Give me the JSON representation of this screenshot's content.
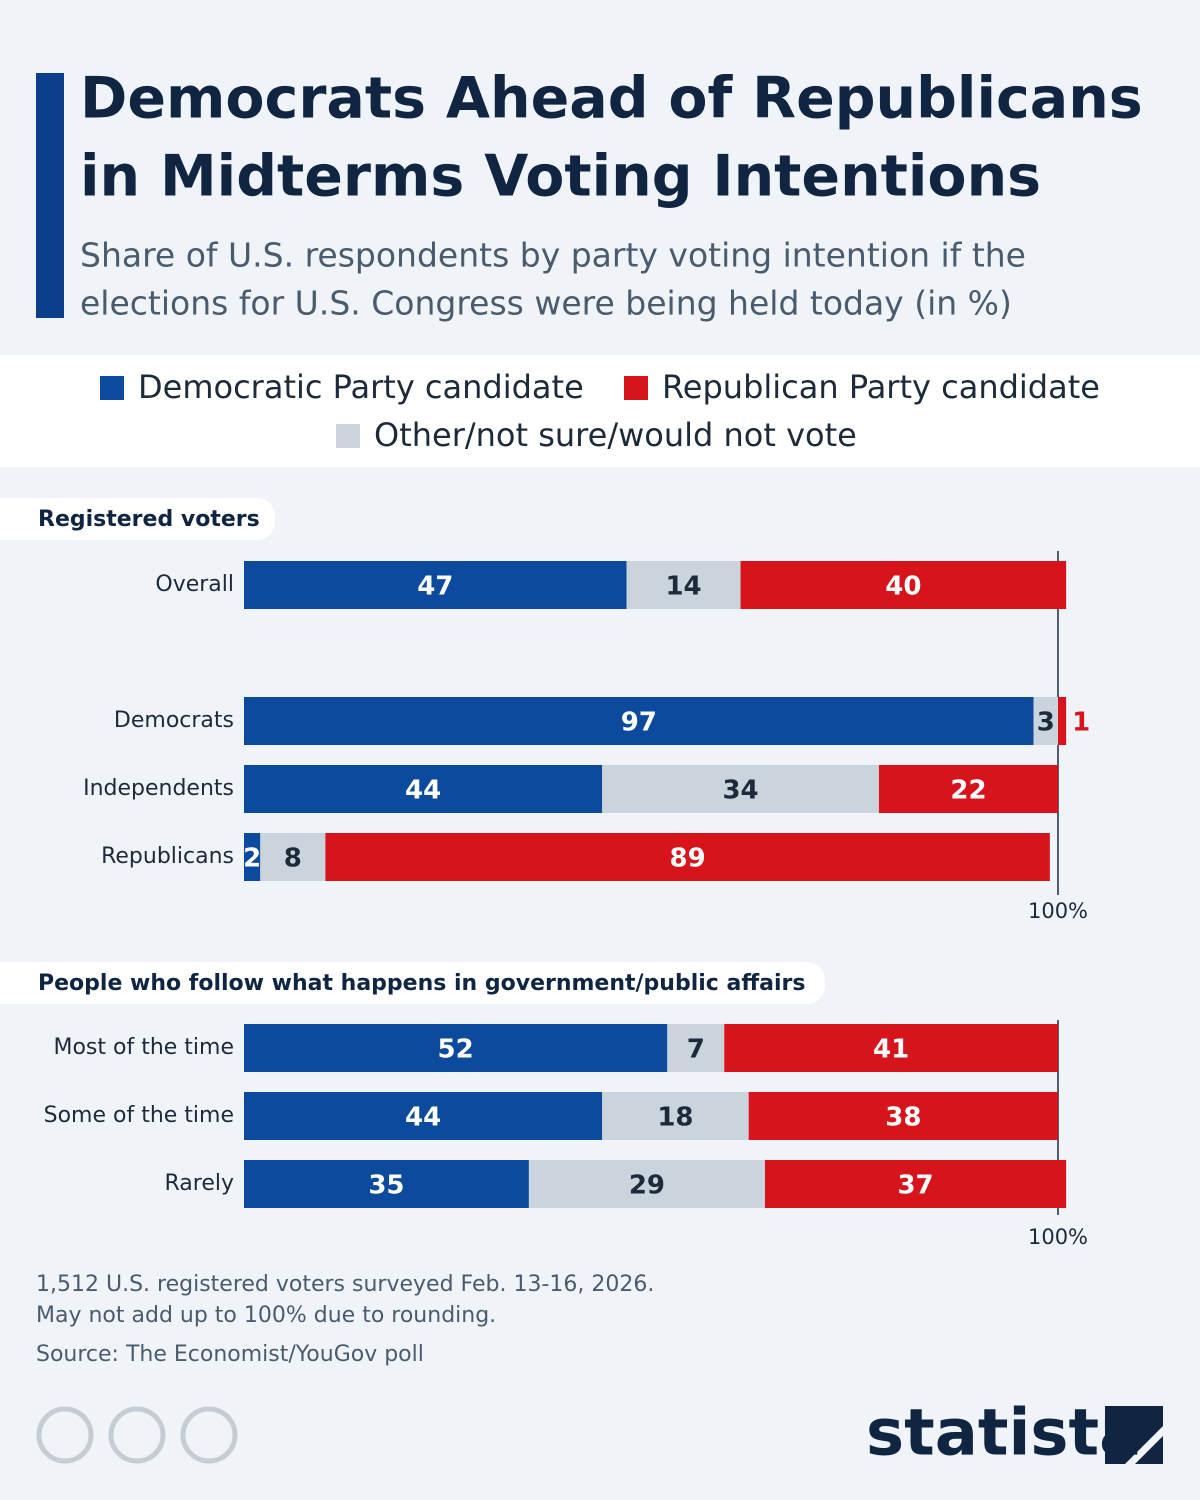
{
  "chart_data": [
    {
      "type": "bar",
      "stacked": true,
      "orientation": "horizontal",
      "title": [
        "Democrats Ahead of Republicans",
        "in Midterms Voting Intentions"
      ],
      "subtitle": [
        "Share of U.S. respondents by party voting intention if the",
        "elections for U.S. Congress were being held today (in %)"
      ],
      "panel_title": "Registered voters",
      "categories": [
        "Overall",
        null,
        "Democrats",
        "Independents",
        "Republicans"
      ],
      "series": [
        {
          "name": "Democratic Party candidate",
          "color": "#0b4a9c",
          "values": [
            47,
            null,
            97,
            44,
            2
          ]
        },
        {
          "name": "Other/not sure/would not vote",
          "color": "#c9d4dc",
          "values": [
            14,
            null,
            3,
            34,
            8
          ]
        },
        {
          "name": "Republican Party candidate",
          "color": "#d7141b",
          "values": [
            40,
            null,
            1,
            22,
            89
          ]
        }
      ],
      "xlim": [
        0,
        100
      ],
      "xticks": [
        {
          "value": 100,
          "label": "100%"
        }
      ]
    },
    {
      "type": "bar",
      "stacked": true,
      "orientation": "horizontal",
      "panel_title": "People who follow what happens in government/public affairs",
      "categories": [
        "Most of the time",
        "Some of the time",
        "Rarely"
      ],
      "series": [
        {
          "color": "#0b4a9c",
          "values": [
            52,
            44,
            35
          ]
        },
        {
          "color": "#c9d4dc",
          "values": [
            7,
            18,
            29
          ]
        },
        {
          "color": "#d7141b",
          "values": [
            41,
            38,
            37
          ]
        }
      ],
      "xlim": [
        0,
        100
      ],
      "xticks": [
        {
          "value": 100,
          "label": "100%"
        }
      ]
    }
  ],
  "notes": [
    "1,512 U.S. registered voters surveyed Feb. 13-16, 2026.",
    "May not add up to 100% due to rounding."
  ],
  "source": "Source: The Economist/YouGov poll",
  "logo": "statista"
}
